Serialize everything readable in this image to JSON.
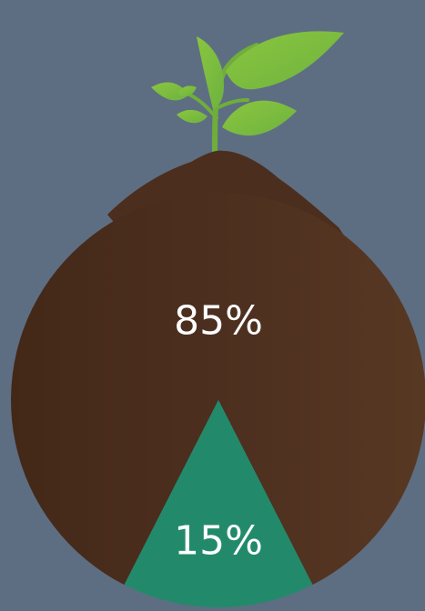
{
  "page": {
    "background": "#5d6e82"
  },
  "chart_data": {
    "type": "pie",
    "title": "",
    "categories": [
      "85%",
      "15%"
    ],
    "values": [
      85,
      15
    ],
    "labels": [
      "85%",
      "15%"
    ],
    "colors": [
      "#4a2d1f",
      "#228a6a"
    ],
    "legend": "none",
    "grid": false,
    "decoration": "plant-sprout-icon"
  }
}
